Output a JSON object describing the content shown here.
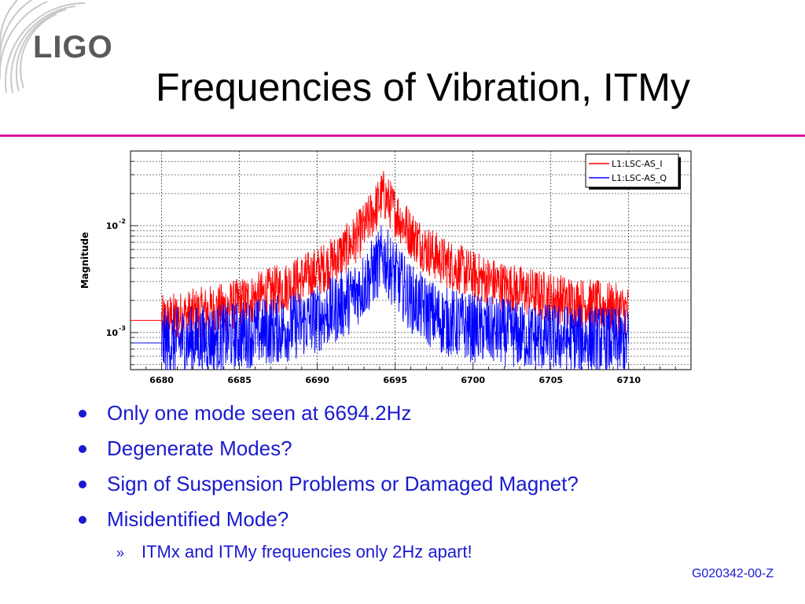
{
  "logo": {
    "text": "LIGO",
    "icon": "ligo-arcs-icon"
  },
  "title": "Frequencies of Vibration, ITMy",
  "colors": {
    "title_rule": "#d6169a",
    "bullet_text": "#1a1ad0",
    "series_i": "#ff0000",
    "series_q": "#0000ff"
  },
  "chart_data": {
    "type": "line",
    "ylabel": "Magnitude",
    "xlabel": "",
    "y_scale": "log",
    "xlim": [
      6678,
      6714
    ],
    "ylim": [
      0.00045,
      0.05
    ],
    "x_ticks": [
      6680,
      6685,
      6690,
      6695,
      6700,
      6705,
      6710
    ],
    "y_ticks": [
      {
        "value": 0.01,
        "base": "10",
        "exp": "-2"
      },
      {
        "value": 0.001,
        "base": "10",
        "exp": "-3"
      }
    ],
    "grid": true,
    "legend_position": "top-right",
    "series": [
      {
        "name": "L1:LSC-AS_I",
        "color": "#ff0000",
        "x": [
          6680,
          6682,
          6684,
          6686,
          6688,
          6690,
          6691,
          6692,
          6693,
          6694,
          6694.2,
          6695,
          6696,
          6697,
          6698,
          6700,
          6702,
          6704,
          6706,
          6708,
          6710
        ],
        "y": [
          0.0013,
          0.0015,
          0.0017,
          0.0021,
          0.0027,
          0.0037,
          0.0046,
          0.0063,
          0.0095,
          0.017,
          0.02,
          0.0135,
          0.0085,
          0.006,
          0.0047,
          0.0034,
          0.0027,
          0.0023,
          0.002,
          0.0018,
          0.0016
        ]
      },
      {
        "name": "L1:LSC-AS_Q",
        "color": "#0000ff",
        "x": [
          6680,
          6682,
          6684,
          6686,
          6688,
          6690,
          6691,
          6692,
          6693,
          6694,
          6694.2,
          6695,
          6696,
          6697,
          6698,
          6700,
          6702,
          6704,
          6706,
          6708,
          6710
        ],
        "y": [
          0.0008,
          0.00085,
          0.0009,
          0.001,
          0.0011,
          0.00135,
          0.0016,
          0.002,
          0.0028,
          0.0045,
          0.0052,
          0.0034,
          0.0021,
          0.0016,
          0.0013,
          0.0011,
          0.001,
          0.0009,
          0.00088,
          0.00085,
          0.0008
        ]
      }
    ]
  },
  "bullets": [
    "Only one mode seen at 6694.2Hz",
    "Degenerate Modes?",
    "Sign of Suspension Problems or Damaged Magnet?",
    "Misidentified Mode?"
  ],
  "sub_bullet": {
    "marker": "»",
    "text": "ITMx and ITMy frequencies only 2Hz apart!"
  },
  "doc_id": "G020342-00-Z"
}
